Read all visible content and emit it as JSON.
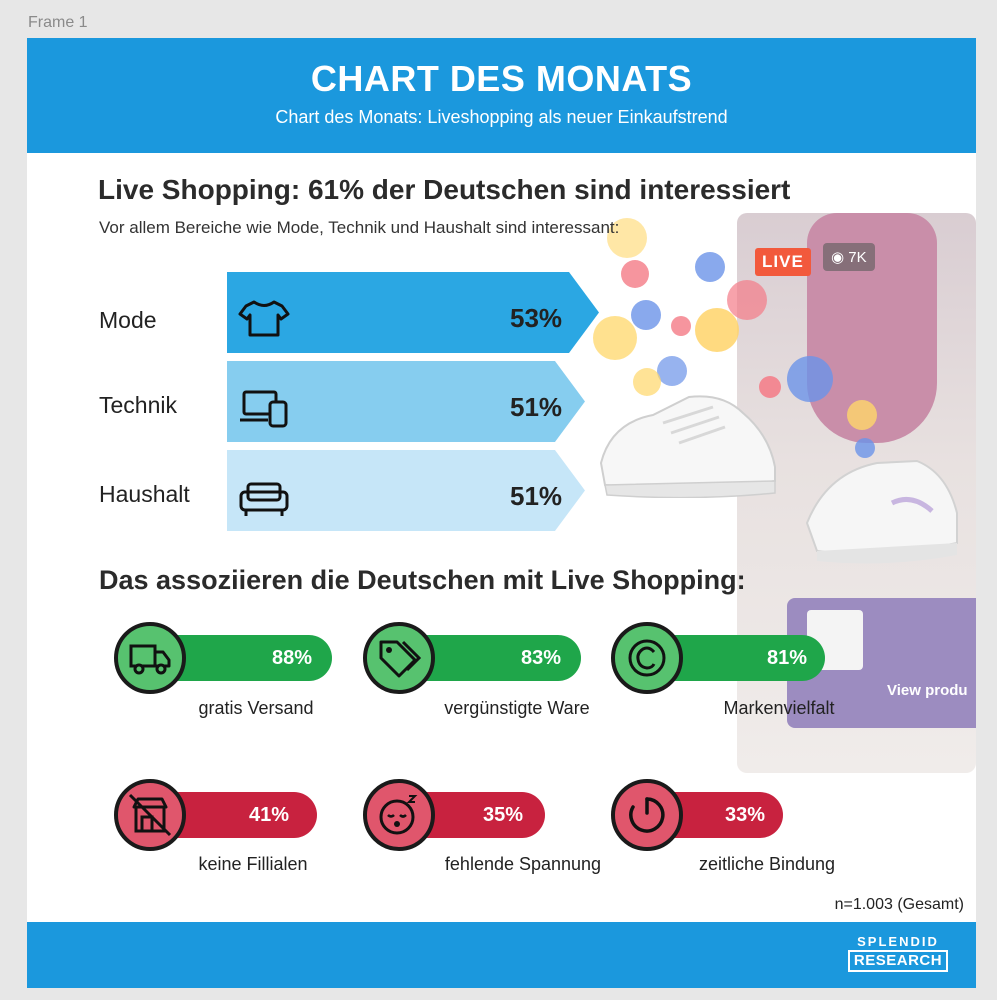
{
  "frame_label": "Frame 1",
  "header": {
    "title": "CHART DES MONATS",
    "subtitle": "Chart des Monats: Liveshopping als neuer Einkaufstrend"
  },
  "section1": {
    "title": "Live Shopping: 61% der Deutschen sind interessiert",
    "subtitle": "Vor allem Bereiche wie Mode, Technik und Haushalt sind interessant:"
  },
  "section2": {
    "title": "Das assoziieren die Deutschen mit Live Shopping:"
  },
  "photo": {
    "live_badge": "LIVE",
    "views": "7K",
    "view_product": "View produ"
  },
  "sample_note": "n=1.003 (Gesamt)",
  "logo": {
    "line1": "SPLENDID",
    "line2": "RESEARCH"
  },
  "colors": {
    "header_blue": "#1b98dd",
    "bar_1": "#2ba7e3",
    "bar_2": "#86cdef",
    "bar_3": "#c6e6f8",
    "positive_green": "#1fa64a",
    "positive_light": "#57c26f",
    "negative_red": "#c8223f",
    "negative_light": "#e0566c"
  },
  "chart_data": [
    {
      "type": "bar",
      "categories": [
        "Mode",
        "Technik",
        "Haushalt"
      ],
      "values": [
        53,
        51,
        51
      ],
      "value_labels": [
        "53%",
        "51%",
        "51%"
      ],
      "icons": [
        "tshirt-icon",
        "devices-icon",
        "sofa-icon"
      ],
      "title": "Live Shopping: 61% der Deutschen sind interessiert",
      "subtitle": "Vor allem Bereiche wie Mode, Technik und Haushalt sind interessant:"
    },
    {
      "type": "bar",
      "title": "Das assoziieren die Deutschen mit Live Shopping:",
      "categories": [
        "gratis Versand",
        "vergünstigte Ware",
        "Markenvielfalt",
        "keine Fillialen",
        "fehlende Spannung",
        "zeitliche Bindung"
      ],
      "values": [
        88,
        83,
        81,
        41,
        35,
        33
      ],
      "value_labels": [
        "88%",
        "83%",
        "81%",
        "41%",
        "35%",
        "33%"
      ],
      "sentiment": [
        "positive",
        "positive",
        "positive",
        "negative",
        "negative",
        "negative"
      ],
      "icons": [
        "truck-icon",
        "price-tag-icon",
        "copyright-icon",
        "store-crossed-icon",
        "sleepy-face-icon",
        "timer-icon"
      ]
    }
  ]
}
